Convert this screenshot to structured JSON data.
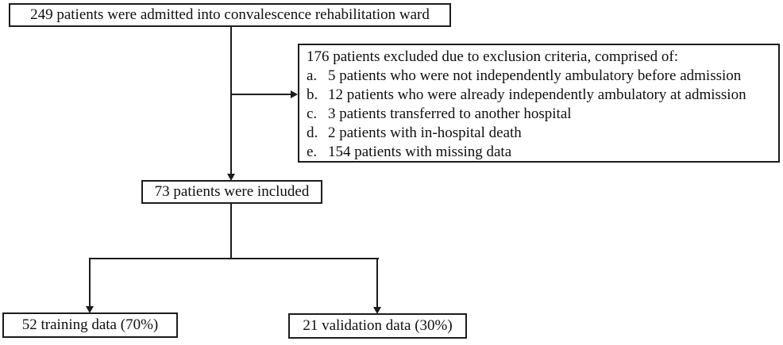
{
  "flowchart": {
    "colors": {
      "border": "#1c1c1c",
      "line": "#1c1c1c",
      "text": "#0f0f0f",
      "box_background": "#ffffff",
      "page_background": "#ffffff"
    },
    "boxes": {
      "admitted": {
        "text": "249 patients were admitted into convalescence rehabilitation ward"
      },
      "excluded": {
        "header": "176 patients excluded due to exclusion criteria, comprised of:",
        "items": [
          {
            "marker": "a.",
            "text": "5 patients who were not independently ambulatory before admission"
          },
          {
            "marker": "b.",
            "text": "12 patients who were already independently ambulatory at admission"
          },
          {
            "marker": "c.",
            "text": "3 patients transferred to another hospital"
          },
          {
            "marker": "d.",
            "text": "2 patients with in-hospital death"
          },
          {
            "marker": "e.",
            "text": "154 patients with missing data"
          }
        ]
      },
      "included": {
        "text": "73 patients were included"
      },
      "training": {
        "text": "52 training data (70%)"
      },
      "validation": {
        "text": "21 validation data (30%)"
      }
    }
  }
}
